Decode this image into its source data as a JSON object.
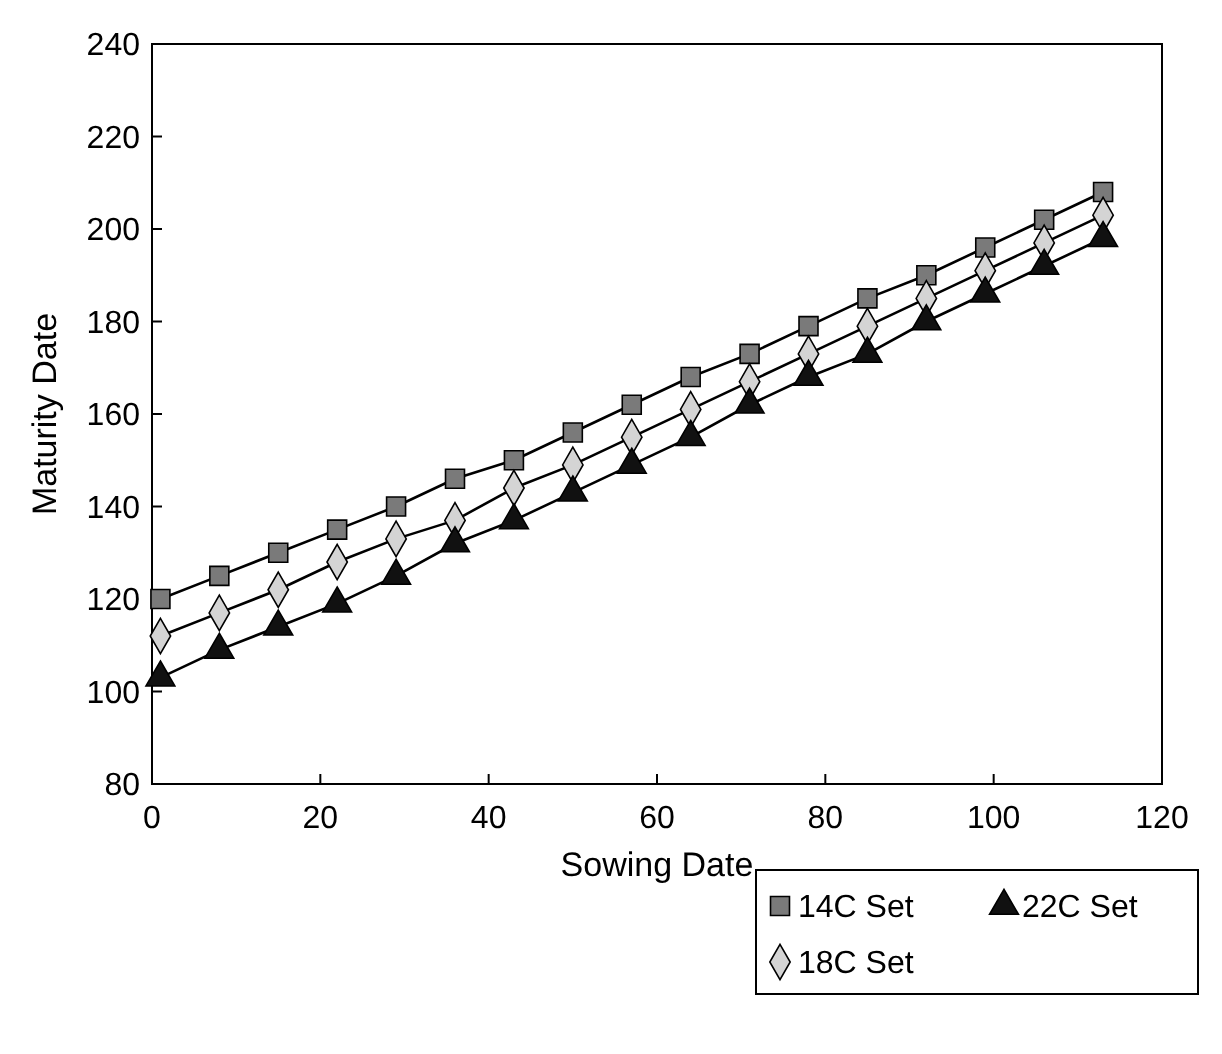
{
  "chart_data": {
    "type": "line",
    "xlabel": "Sowing Date",
    "ylabel": "Maturity Date",
    "x": [
      1,
      8,
      15,
      22,
      29,
      36,
      43,
      50,
      57,
      64,
      71,
      78,
      85,
      92,
      99,
      106,
      113
    ],
    "series": [
      {
        "name": "14C Set",
        "color": "#7a7a7a",
        "marker": "square",
        "values": [
          120,
          125,
          130,
          135,
          140,
          146,
          150,
          156,
          162,
          168,
          173,
          179,
          185,
          190,
          196,
          202,
          208
        ]
      },
      {
        "name": "18C Set",
        "color": "#d4d4d4",
        "marker": "diamond",
        "values": [
          112,
          117,
          122,
          128,
          133,
          137,
          144,
          149,
          155,
          161,
          167,
          173,
          179,
          185,
          191,
          197,
          203
        ]
      },
      {
        "name": "22C Set",
        "color": "#111111",
        "marker": "triangle",
        "values": [
          103,
          109,
          114,
          119,
          125,
          132,
          137,
          143,
          149,
          155,
          162,
          168,
          173,
          180,
          186,
          192,
          198
        ]
      }
    ],
    "xlim": [
      0,
      120
    ],
    "xticks": [
      0,
      20,
      40,
      60,
      80,
      100,
      120
    ],
    "ylim": [
      80,
      240
    ],
    "yticks": [
      80,
      100,
      120,
      140,
      160,
      180,
      200,
      220,
      240
    ],
    "grid": false,
    "legend": "bottom right",
    "line_style": "solid"
  }
}
